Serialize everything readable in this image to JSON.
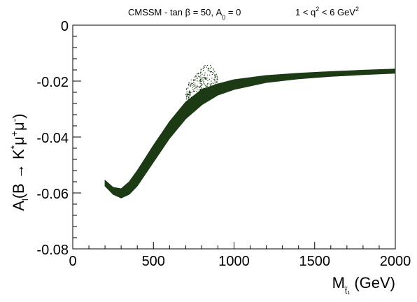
{
  "chart_data": {
    "type": "scatter",
    "title": "CMSSM - tan β = 50, A",
    "title_sub": "0",
    "title_tail": " = 0",
    "title_right_main": "1 < q",
    "title_right_sup": "2",
    "title_right_tail": " < 6 GeV",
    "title_right_sup2": "2",
    "xlabel_main": "M",
    "xlabel_sub": "t̃₁",
    "xlabel_unit": "(GeV)",
    "ylabel_main": "A",
    "ylabel_sub": "l",
    "ylabel_body": "(B → K",
    "ylabel_sup1": "*",
    "ylabel_mu1": "μ",
    "ylabel_sup2": "+",
    "ylabel_mu2": "μ",
    "ylabel_sup3": "-",
    "ylabel_close": ")",
    "xlim": [
      0,
      2000
    ],
    "ylim": [
      -0.08,
      0
    ],
    "x_major_ticks": [
      0,
      500,
      1000,
      1500,
      2000
    ],
    "x_tick_labels": [
      "0",
      "500",
      "1000",
      "1500",
      "2000"
    ],
    "y_major_ticks": [
      0,
      -0.02,
      -0.04,
      -0.06,
      -0.08
    ],
    "y_tick_labels": [
      "0",
      "-0.02",
      "-0.04",
      "-0.06",
      "-0.08"
    ],
    "grid": false,
    "point_color": "#1c3a14",
    "band": {
      "name": "",
      "x": [
        200,
        250,
        300,
        350,
        400,
        500,
        600,
        700,
        800,
        900,
        1000,
        1200,
        1400,
        1600,
        1800,
        2000
      ],
      "upper": [
        -0.0555,
        -0.058,
        -0.0585,
        -0.056,
        -0.052,
        -0.043,
        -0.0345,
        -0.0275,
        -0.023,
        -0.021,
        -0.0195,
        -0.018,
        -0.0172,
        -0.0166,
        -0.0161,
        -0.0157
      ],
      "lower": [
        -0.0575,
        -0.0605,
        -0.0618,
        -0.0605,
        -0.0575,
        -0.049,
        -0.0405,
        -0.0335,
        -0.0285,
        -0.025,
        -0.023,
        -0.0205,
        -0.0192,
        -0.0183,
        -0.0177,
        -0.0172
      ]
    },
    "scatter_outliers": {
      "x_range": [
        700,
        900
      ],
      "y_range": [
        -0.026,
        -0.0125
      ]
    }
  }
}
